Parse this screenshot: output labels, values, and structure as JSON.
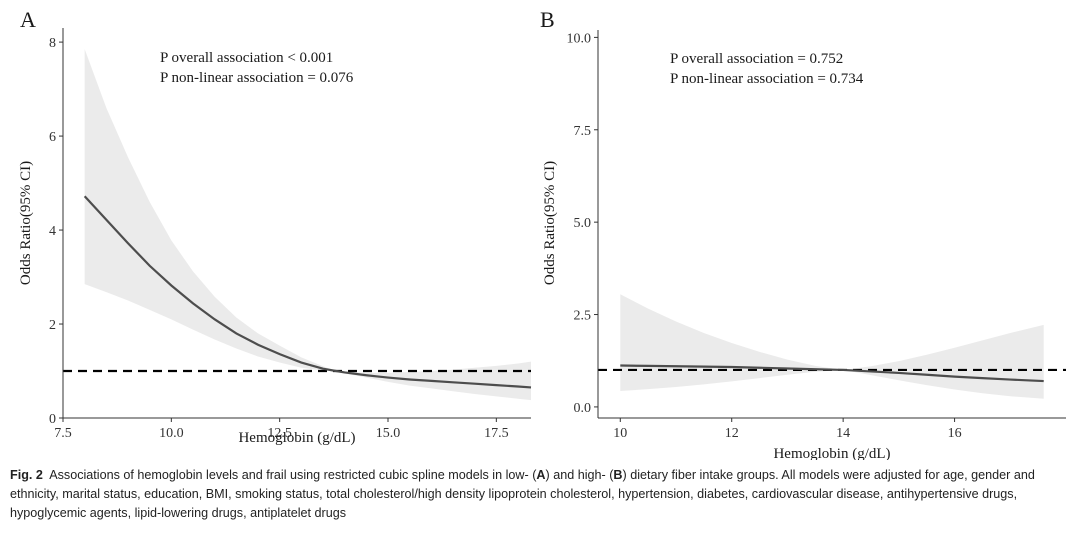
{
  "chart_data": [
    {
      "type": "line",
      "panel_label": "A",
      "xlabel": "Hemoglobin (g/dL)",
      "ylabel": "Odds Ratio(95% CI)",
      "xlim": [
        7.5,
        18.3
      ],
      "ylim": [
        0,
        8.3
      ],
      "xticks": [
        7.5,
        10.0,
        12.5,
        15.0,
        17.5
      ],
      "xtick_labels": [
        "7.5",
        "10.0",
        "12.5",
        "15.0",
        "17.5"
      ],
      "yticks": [
        0,
        2,
        4,
        6,
        8
      ],
      "ytick_labels": [
        "0",
        "2",
        "4",
        "6",
        "8"
      ],
      "reference_line": 1,
      "grid": false,
      "annotations": [
        "P overall association < 0.001",
        "P non-linear association = 0.076"
      ],
      "series": [
        {
          "x": [
            8.0,
            8.5,
            9.0,
            9.5,
            10.0,
            10.5,
            11.0,
            11.5,
            12.0,
            12.5,
            13.0,
            13.5,
            13.8,
            14.0,
            14.5,
            15.0,
            15.5,
            16.0,
            16.5,
            17.0,
            17.5,
            18.0,
            18.3
          ],
          "y": [
            4.72,
            4.22,
            3.72,
            3.24,
            2.82,
            2.44,
            2.1,
            1.8,
            1.56,
            1.36,
            1.18,
            1.05,
            1.0,
            0.97,
            0.91,
            0.86,
            0.82,
            0.79,
            0.76,
            0.73,
            0.7,
            0.67,
            0.65
          ],
          "lower": [
            2.85,
            2.68,
            2.5,
            2.3,
            2.1,
            1.88,
            1.67,
            1.48,
            1.31,
            1.18,
            1.07,
            1.01,
            1.0,
            0.95,
            0.86,
            0.77,
            0.69,
            0.63,
            0.57,
            0.51,
            0.46,
            0.41,
            0.38
          ],
          "upper": [
            7.85,
            6.6,
            5.55,
            4.6,
            3.78,
            3.12,
            2.58,
            2.14,
            1.8,
            1.54,
            1.29,
            1.1,
            1.0,
            0.99,
            0.96,
            0.96,
            0.98,
            1.0,
            1.03,
            1.07,
            1.11,
            1.16,
            1.2
          ]
        }
      ]
    },
    {
      "type": "line",
      "panel_label": "B",
      "xlabel": "Hemoglobin (g/dL)",
      "ylabel": "Odds Ratio(95% CI)",
      "xlim": [
        9.6,
        18.0
      ],
      "ylim": [
        -0.3,
        10.2
      ],
      "xticks": [
        10,
        12,
        14,
        16
      ],
      "xtick_labels": [
        "10",
        "12",
        "14",
        "16"
      ],
      "yticks": [
        0.0,
        2.5,
        5.0,
        7.5,
        10.0
      ],
      "ytick_labels": [
        "0.0",
        "2.5",
        "5.0",
        "7.5",
        "10.0"
      ],
      "reference_line": 1,
      "grid": false,
      "annotations": [
        "P overall association = 0.752",
        "P non-linear association = 0.734"
      ],
      "series": [
        {
          "x": [
            10.0,
            10.5,
            11.0,
            11.5,
            12.0,
            12.5,
            13.0,
            13.5,
            14.0,
            14.5,
            15.0,
            15.5,
            16.0,
            16.5,
            17.0,
            17.6
          ],
          "y": [
            1.12,
            1.11,
            1.1,
            1.09,
            1.08,
            1.06,
            1.04,
            1.02,
            1.0,
            0.96,
            0.92,
            0.87,
            0.82,
            0.78,
            0.74,
            0.7
          ],
          "lower": [
            0.43,
            0.48,
            0.54,
            0.61,
            0.69,
            0.78,
            0.87,
            0.95,
            1.0,
            0.86,
            0.72,
            0.59,
            0.47,
            0.37,
            0.29,
            0.22
          ],
          "upper": [
            3.05,
            2.66,
            2.31,
            2.0,
            1.73,
            1.49,
            1.28,
            1.11,
            1.0,
            1.1,
            1.24,
            1.41,
            1.6,
            1.8,
            2.0,
            2.22
          ]
        }
      ]
    }
  ],
  "caption": {
    "fig_label": "Fig. 2",
    "p1": "Associations of hemoglobin levels and frail using restricted cubic spline models in low- (",
    "a": "A",
    "p2": ") and high- (",
    "b": "B",
    "p3": ") dietary fiber intake groups. All models were adjusted for age, gender and ethnicity, marital status, education, BMI, smoking status, total cholesterol/high density lipoprotein cholesterol, hypertension, diabetes, cardiovascular disease, antihypertensive drugs, hypoglycemic agents, lipid-lowering drugs, antiplatelet drugs"
  },
  "colors": {
    "curve": "#4d4d4d",
    "ci_band": "#ebebeb",
    "reference_line": "#000000",
    "axis": "#333333",
    "text": "#1a1a1a"
  }
}
